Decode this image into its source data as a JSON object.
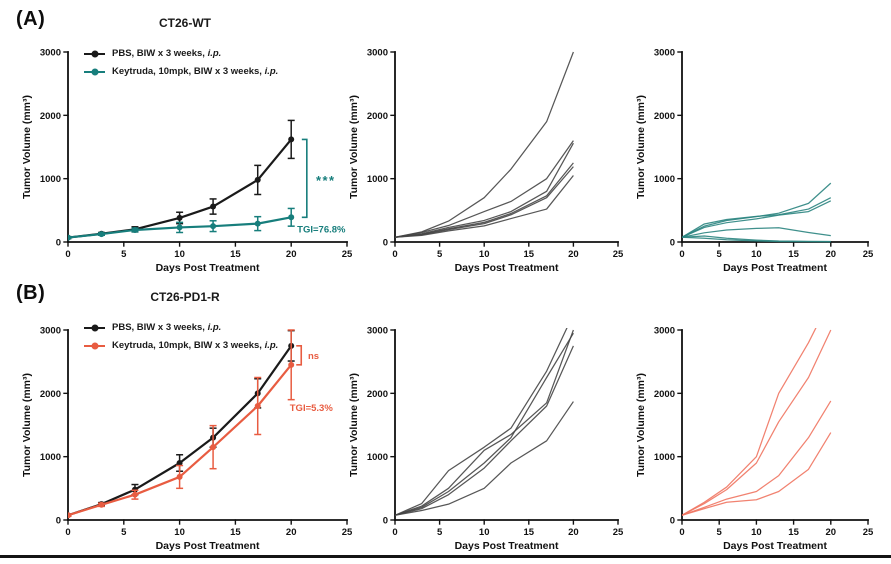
{
  "panels": {
    "a": {
      "label": "(A)",
      "title": "CT26-WT",
      "legend": [
        {
          "prefix": "PBS, BIW x 3 weeks, ",
          "italic": "i.p.",
          "color": "#1a1a1a"
        },
        {
          "prefix": "Keytruda, 10mpk, BIW x 3 weeks, ",
          "italic": "i.p.",
          "color": "#177e7c"
        }
      ]
    },
    "b": {
      "label": "(B)",
      "title": "CT26-PD1-R",
      "legend": [
        {
          "prefix": "PBS, BIW x 3 weeks, ",
          "italic": "i.p.",
          "color": "#1a1a1a"
        },
        {
          "prefix": "Keytruda, 10mpk, BIW x 3 weeks, ",
          "italic": "i.p.",
          "color": "#e85c41"
        }
      ]
    }
  },
  "colors": {
    "black": "#1a1a1a",
    "teal": "#177e7c",
    "red": "#e85c41",
    "gray_individual": "#454545",
    "teal_individual": "#2a8480",
    "red_individual": "#ef7460"
  },
  "chart_data": [
    {
      "id": "a_mean",
      "type": "line",
      "title": "CT26-WT",
      "x": [
        0,
        3,
        6,
        10,
        13,
        17,
        20
      ],
      "series": [
        {
          "name": "PBS",
          "color": "#1a1a1a",
          "marker": true,
          "values": [
            70,
            130,
            200,
            380,
            560,
            980,
            1620
          ],
          "errors": [
            15,
            20,
            40,
            90,
            120,
            230,
            300
          ]
        },
        {
          "name": "Keytruda",
          "color": "#177e7c",
          "marker": true,
          "values": [
            70,
            125,
            190,
            230,
            250,
            290,
            390
          ],
          "errors": [
            12,
            18,
            30,
            80,
            85,
            110,
            140
          ]
        }
      ],
      "xlabel": "Days Post Treatment",
      "ylabel": "Tumor Volume (mm³)",
      "xlim": [
        0,
        25
      ],
      "ylim": [
        0,
        3000
      ],
      "xticks": [
        0,
        5,
        10,
        15,
        20,
        25
      ],
      "yticks": [
        0,
        1000,
        2000,
        3000
      ],
      "annotations": [
        {
          "type": "bracket",
          "x": 21.4,
          "y1": 1620,
          "y2": 390,
          "color": "#177e7c",
          "name": "significance-bracket"
        },
        {
          "type": "text",
          "text": "***",
          "x": 23.1,
          "y": 900,
          "color": "#177e7c",
          "size": 13,
          "spacing": 1.5,
          "name": "significance-stars"
        },
        {
          "type": "text",
          "text": "TGI=76.8%",
          "x": 22.7,
          "y": 150,
          "color": "#177e7c",
          "size": 9.5,
          "name": "tgi-label"
        }
      ]
    },
    {
      "id": "a_ind_control",
      "type": "line",
      "x": [
        0,
        3,
        6,
        10,
        13,
        17,
        20
      ],
      "series": [
        {
          "name": "mouse-1",
          "color": "#454545",
          "values": [
            75,
            160,
            330,
            700,
            1150,
            1900,
            3000
          ]
        },
        {
          "name": "mouse-2",
          "color": "#454545",
          "values": [
            75,
            150,
            260,
            480,
            640,
            1000,
            1600
          ]
        },
        {
          "name": "mouse-3",
          "color": "#454545",
          "values": [
            75,
            130,
            230,
            340,
            480,
            800,
            1560
          ]
        },
        {
          "name": "mouse-4",
          "color": "#454545",
          "values": [
            75,
            120,
            210,
            310,
            450,
            730,
            1250
          ]
        },
        {
          "name": "mouse-5",
          "color": "#454545",
          "values": [
            75,
            115,
            195,
            290,
            430,
            700,
            1190
          ]
        },
        {
          "name": "mouse-6",
          "color": "#454545",
          "values": [
            75,
            105,
            175,
            255,
            370,
            520,
            1050
          ]
        }
      ],
      "xlabel": "Days Post Treatment",
      "ylabel": "Tumor Volume (mm³)",
      "xlim": [
        0,
        25
      ],
      "ylim": [
        0,
        3000
      ],
      "xticks": [
        0,
        5,
        10,
        15,
        20,
        25
      ],
      "yticks": [
        0,
        1000,
        2000,
        3000
      ],
      "annotations": []
    },
    {
      "id": "a_ind_treated",
      "type": "line",
      "x": [
        0,
        3,
        6,
        10,
        13,
        17,
        20
      ],
      "series": [
        {
          "name": "mouse-1",
          "color": "#2a8480",
          "values": [
            75,
            250,
            340,
            400,
            455,
            610,
            930
          ]
        },
        {
          "name": "mouse-2",
          "color": "#2a8480",
          "values": [
            75,
            285,
            355,
            405,
            430,
            520,
            700
          ]
        },
        {
          "name": "mouse-3",
          "color": "#2a8480",
          "values": [
            75,
            230,
            305,
            365,
            425,
            480,
            650
          ]
        },
        {
          "name": "mouse-4",
          "color": "#2a8480",
          "values": [
            75,
            145,
            190,
            215,
            225,
            150,
            100
          ]
        },
        {
          "name": "mouse-5",
          "color": "#2a8480",
          "values": [
            75,
            95,
            60,
            30,
            15,
            10,
            8
          ]
        },
        {
          "name": "mouse-6",
          "color": "#2a8480",
          "values": [
            75,
            60,
            35,
            15,
            8,
            5,
            4
          ]
        }
      ],
      "xlabel": "Days Post Treatment",
      "ylabel": "Tumor Volume (mm³)",
      "xlim": [
        0,
        25
      ],
      "ylim": [
        0,
        3000
      ],
      "xticks": [
        0,
        5,
        10,
        15,
        20,
        25
      ],
      "yticks": [
        0,
        1000,
        2000,
        3000
      ],
      "annotations": []
    },
    {
      "id": "b_mean",
      "type": "line",
      "title": "CT26-PD1-R",
      "x": [
        0,
        3,
        6,
        10,
        13,
        17,
        20
      ],
      "series": [
        {
          "name": "PBS",
          "color": "#1a1a1a",
          "marker": true,
          "values": [
            75,
            250,
            480,
            900,
            1300,
            2000,
            2750
          ],
          "errors": [
            15,
            25,
            80,
            130,
            150,
            230,
            240
          ]
        },
        {
          "name": "Keytruda",
          "color": "#e85c41",
          "marker": true,
          "values": [
            75,
            240,
            400,
            680,
            1150,
            1800,
            2450
          ],
          "errors": [
            15,
            25,
            70,
            180,
            340,
            450,
            550
          ]
        }
      ],
      "xlabel": "Days Post Treatment",
      "ylabel": "Tumor Volume (mm³)",
      "xlim": [
        0,
        25
      ],
      "ylim": [
        0,
        3000
      ],
      "xticks": [
        0,
        5,
        10,
        15,
        20,
        25
      ],
      "yticks": [
        0,
        1000,
        2000,
        3000
      ],
      "annotations": [
        {
          "type": "bracket",
          "x": 20.9,
          "y1": 2750,
          "y2": 2450,
          "color": "#e85c41",
          "name": "significance-bracket"
        },
        {
          "type": "text",
          "text": "ns",
          "x": 21.5,
          "y": 2540,
          "color": "#e85c41",
          "size": 9.5,
          "anchor": "start",
          "name": "significance-ns"
        },
        {
          "type": "text",
          "text": "TGI=5.3%",
          "x": 21.8,
          "y": 1720,
          "color": "#e85c41",
          "size": 9.5,
          "name": "tgi-label"
        }
      ]
    },
    {
      "id": "b_ind_control",
      "type": "line",
      "x": [
        0,
        3,
        6,
        10,
        13,
        17,
        20
      ],
      "series": [
        {
          "name": "mouse-1",
          "color": "#454545",
          "values": [
            75,
            260,
            780,
            1150,
            1450,
            2350,
            3250
          ]
        },
        {
          "name": "mouse-2",
          "color": "#454545",
          "values": [
            75,
            220,
            500,
            1100,
            1350,
            1850,
            3000
          ]
        },
        {
          "name": "mouse-3",
          "color": "#454545",
          "values": [
            75,
            200,
            450,
            900,
            1300,
            2250,
            2950
          ]
        },
        {
          "name": "mouse-4",
          "color": "#454545",
          "values": [
            75,
            180,
            400,
            820,
            1250,
            1800,
            2750
          ]
        },
        {
          "name": "mouse-5",
          "color": "#454545",
          "values": [
            75,
            150,
            250,
            500,
            900,
            1250,
            1870
          ]
        }
      ],
      "xlabel": "Days Post Treatment",
      "ylabel": "Tumor Volume (mm³)",
      "xlim": [
        0,
        25
      ],
      "ylim": [
        0,
        3000
      ],
      "xticks": [
        0,
        5,
        10,
        15,
        20,
        25
      ],
      "yticks": [
        0,
        1000,
        2000,
        3000
      ],
      "annotations": []
    },
    {
      "id": "b_ind_treated",
      "type": "line",
      "x": [
        0,
        3,
        6,
        10,
        13,
        17,
        20
      ],
      "series": [
        {
          "name": "mouse-1",
          "color": "#ef7460",
          "values": [
            75,
            280,
            520,
            1000,
            2000,
            2800,
            3500
          ]
        },
        {
          "name": "mouse-2",
          "color": "#ef7460",
          "values": [
            75,
            260,
            480,
            900,
            1550,
            2250,
            3000
          ]
        },
        {
          "name": "mouse-3",
          "color": "#ef7460",
          "values": [
            75,
            200,
            330,
            450,
            700,
            1300,
            1880
          ]
        },
        {
          "name": "mouse-4",
          "color": "#ef7460",
          "values": [
            75,
            180,
            280,
            320,
            450,
            800,
            1380
          ]
        }
      ],
      "xlabel": "Days Post Treatment",
      "ylabel": "Tumor Volume (mm³)",
      "xlim": [
        0,
        25
      ],
      "ylim": [
        0,
        3000
      ],
      "xticks": [
        0,
        5,
        10,
        15,
        20,
        25
      ],
      "yticks": [
        0,
        1000,
        2000,
        3000
      ],
      "annotations": []
    }
  ]
}
